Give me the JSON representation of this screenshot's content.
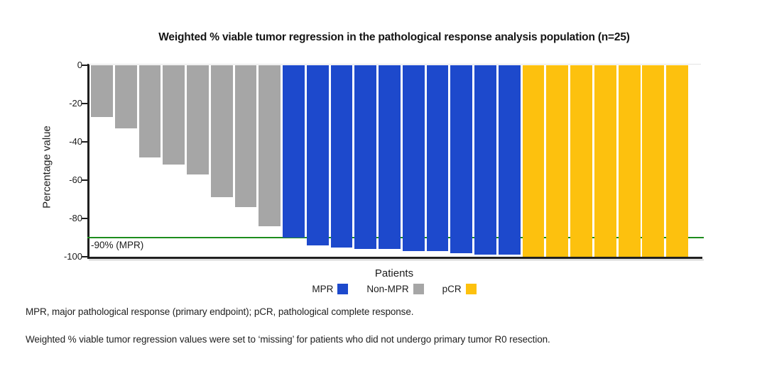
{
  "title": "Weighted % viable tumor regression in the pathological response analysis population (n=25)",
  "y_axis": {
    "label": "Percentage value",
    "ticks": [
      0,
      -20,
      -40,
      -60,
      -80,
      -100
    ]
  },
  "x_axis": {
    "label": "Patients"
  },
  "reference_line": {
    "value": -90,
    "label": "-90% (MPR)",
    "color": "#1e8c1e"
  },
  "legend": [
    {
      "label": "MPR",
      "color": "#1d49cc"
    },
    {
      "label": "Non-MPR",
      "color": "#a6a6a6"
    },
    {
      "label": "pCR",
      "color": "#fdc10e"
    }
  ],
  "footnotes": [
    "MPR, major pathological response (primary endpoint); pCR, pathological complete response.",
    "Weighted % viable tumor regression values were set to ‘missing’ for patients who did not undergo primary tumor R0 resection."
  ],
  "chart_data": {
    "type": "bar",
    "title": "Weighted % viable tumor regression in the pathological response analysis population (n=25)",
    "xlabel": "Patients",
    "ylabel": "Percentage value",
    "ylim": [
      -100,
      0
    ],
    "n": 25,
    "reference_line_value": -90,
    "grid": false,
    "legend_position": "bottom",
    "bars": [
      {
        "group": "Non-MPR",
        "value": -27
      },
      {
        "group": "Non-MPR",
        "value": -33
      },
      {
        "group": "Non-MPR",
        "value": -48
      },
      {
        "group": "Non-MPR",
        "value": -52
      },
      {
        "group": "Non-MPR",
        "value": -57
      },
      {
        "group": "Non-MPR",
        "value": -69
      },
      {
        "group": "Non-MPR",
        "value": -74
      },
      {
        "group": "Non-MPR",
        "value": -84
      },
      {
        "group": "MPR",
        "value": -90
      },
      {
        "group": "MPR",
        "value": -94
      },
      {
        "group": "MPR",
        "value": -95
      },
      {
        "group": "MPR",
        "value": -96
      },
      {
        "group": "MPR",
        "value": -96
      },
      {
        "group": "MPR",
        "value": -97
      },
      {
        "group": "MPR",
        "value": -97
      },
      {
        "group": "MPR",
        "value": -98
      },
      {
        "group": "MPR",
        "value": -99
      },
      {
        "group": "MPR",
        "value": -99
      },
      {
        "group": "pCR",
        "value": -100
      },
      {
        "group": "pCR",
        "value": -100
      },
      {
        "group": "pCR",
        "value": -100
      },
      {
        "group": "pCR",
        "value": -100
      },
      {
        "group": "pCR",
        "value": -100
      },
      {
        "group": "pCR",
        "value": -100
      },
      {
        "group": "pCR",
        "value": -100
      }
    ],
    "series": [
      {
        "name": "Non-MPR",
        "values": [
          -27,
          -33,
          -48,
          -52,
          -57,
          -69,
          -74,
          -84
        ]
      },
      {
        "name": "MPR",
        "values": [
          -90,
          -94,
          -95,
          -96,
          -96,
          -97,
          -97,
          -98,
          -99,
          -99
        ]
      },
      {
        "name": "pCR",
        "values": [
          -100,
          -100,
          -100,
          -100,
          -100,
          -100,
          -100
        ]
      }
    ]
  }
}
